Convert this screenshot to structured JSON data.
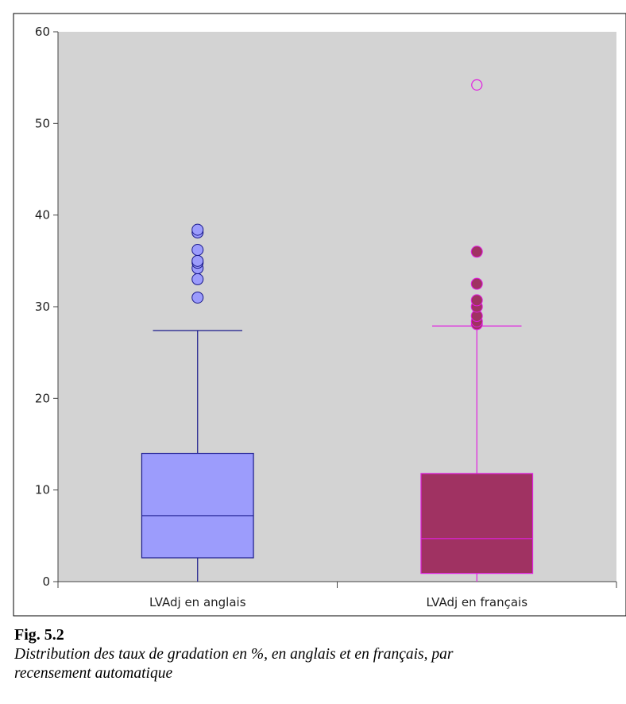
{
  "chart_data": {
    "type": "boxplot",
    "title": "",
    "xlabel": "",
    "ylabel": "",
    "ylim": [
      0,
      60
    ],
    "y_ticks": [
      0,
      10,
      20,
      30,
      40,
      50,
      60
    ],
    "y_tick_labels": [
      "0",
      "10",
      "20",
      "30",
      "40",
      "50",
      "60"
    ],
    "background": "#d3d3d3",
    "grid": false,
    "categories": [
      "LVAdj en anglais",
      "LVAdj en français"
    ],
    "boxes": [
      {
        "name": "LVAdj en anglais",
        "min": 0,
        "q1": 2.6,
        "median": 7.2,
        "q3": 14.0,
        "max": 27.4,
        "outliers": [
          31.0,
          33.0,
          34.2,
          34.8,
          35.0,
          36.2,
          38.1,
          38.4
        ],
        "extreme_outliers": [],
        "fill": "#9c9cfc",
        "stroke": "#1a1a8c"
      },
      {
        "name": "LVAdj en français",
        "min": 0,
        "q1": 0.9,
        "median": 4.7,
        "q3": 11.8,
        "max": 27.9,
        "outliers": [
          28.1,
          28.4,
          29.0,
          30.0,
          30.7,
          32.5,
          36.0
        ],
        "extreme_outliers": [
          54.2
        ],
        "fill": "#a03262",
        "stroke": "#e020e0"
      }
    ]
  },
  "caption": {
    "title": "Fig. 5.2",
    "text_line1": "Distribution des taux de gradation en %, en anglais et en français, par",
    "text_line2": "recensement automatique"
  }
}
